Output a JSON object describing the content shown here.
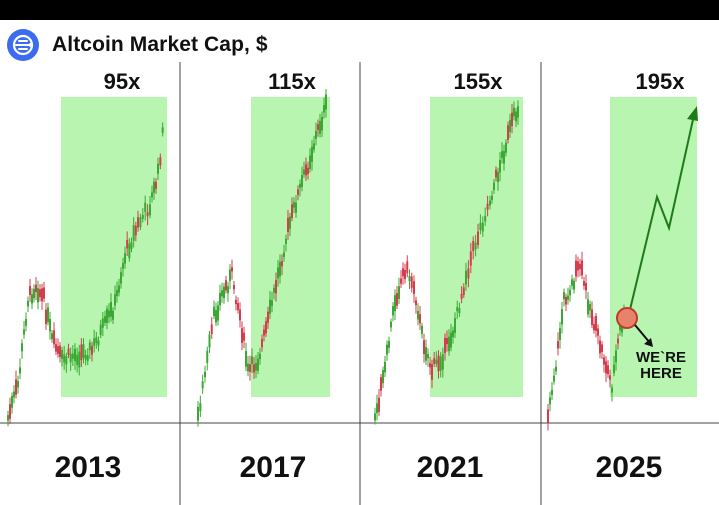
{
  "header": {
    "title": "Altcoin Market Cap, $",
    "logo_icon": "market-cap-logo-icon"
  },
  "colors": {
    "brand_blue": "#3b6cf0",
    "highlight_green": "#b7f5b0",
    "candle_up": "#3aa832",
    "candle_down": "#d63c4e",
    "marker_fill": "#e8836b",
    "marker_stroke": "#c0392b",
    "arrow_dark": "#1f7a1a"
  },
  "chart_data": {
    "type": "candlestick",
    "title": "Altcoin Market Cap, $",
    "panels": [
      {
        "year": "2013",
        "multiplier": "95x"
      },
      {
        "year": "2017",
        "multiplier": "115x"
      },
      {
        "year": "2021",
        "multiplier": "155x"
      },
      {
        "year": "2025",
        "multiplier": "195x",
        "annotation": [
          "WE`RE",
          "HERE"
        ],
        "projection": true
      }
    ]
  }
}
